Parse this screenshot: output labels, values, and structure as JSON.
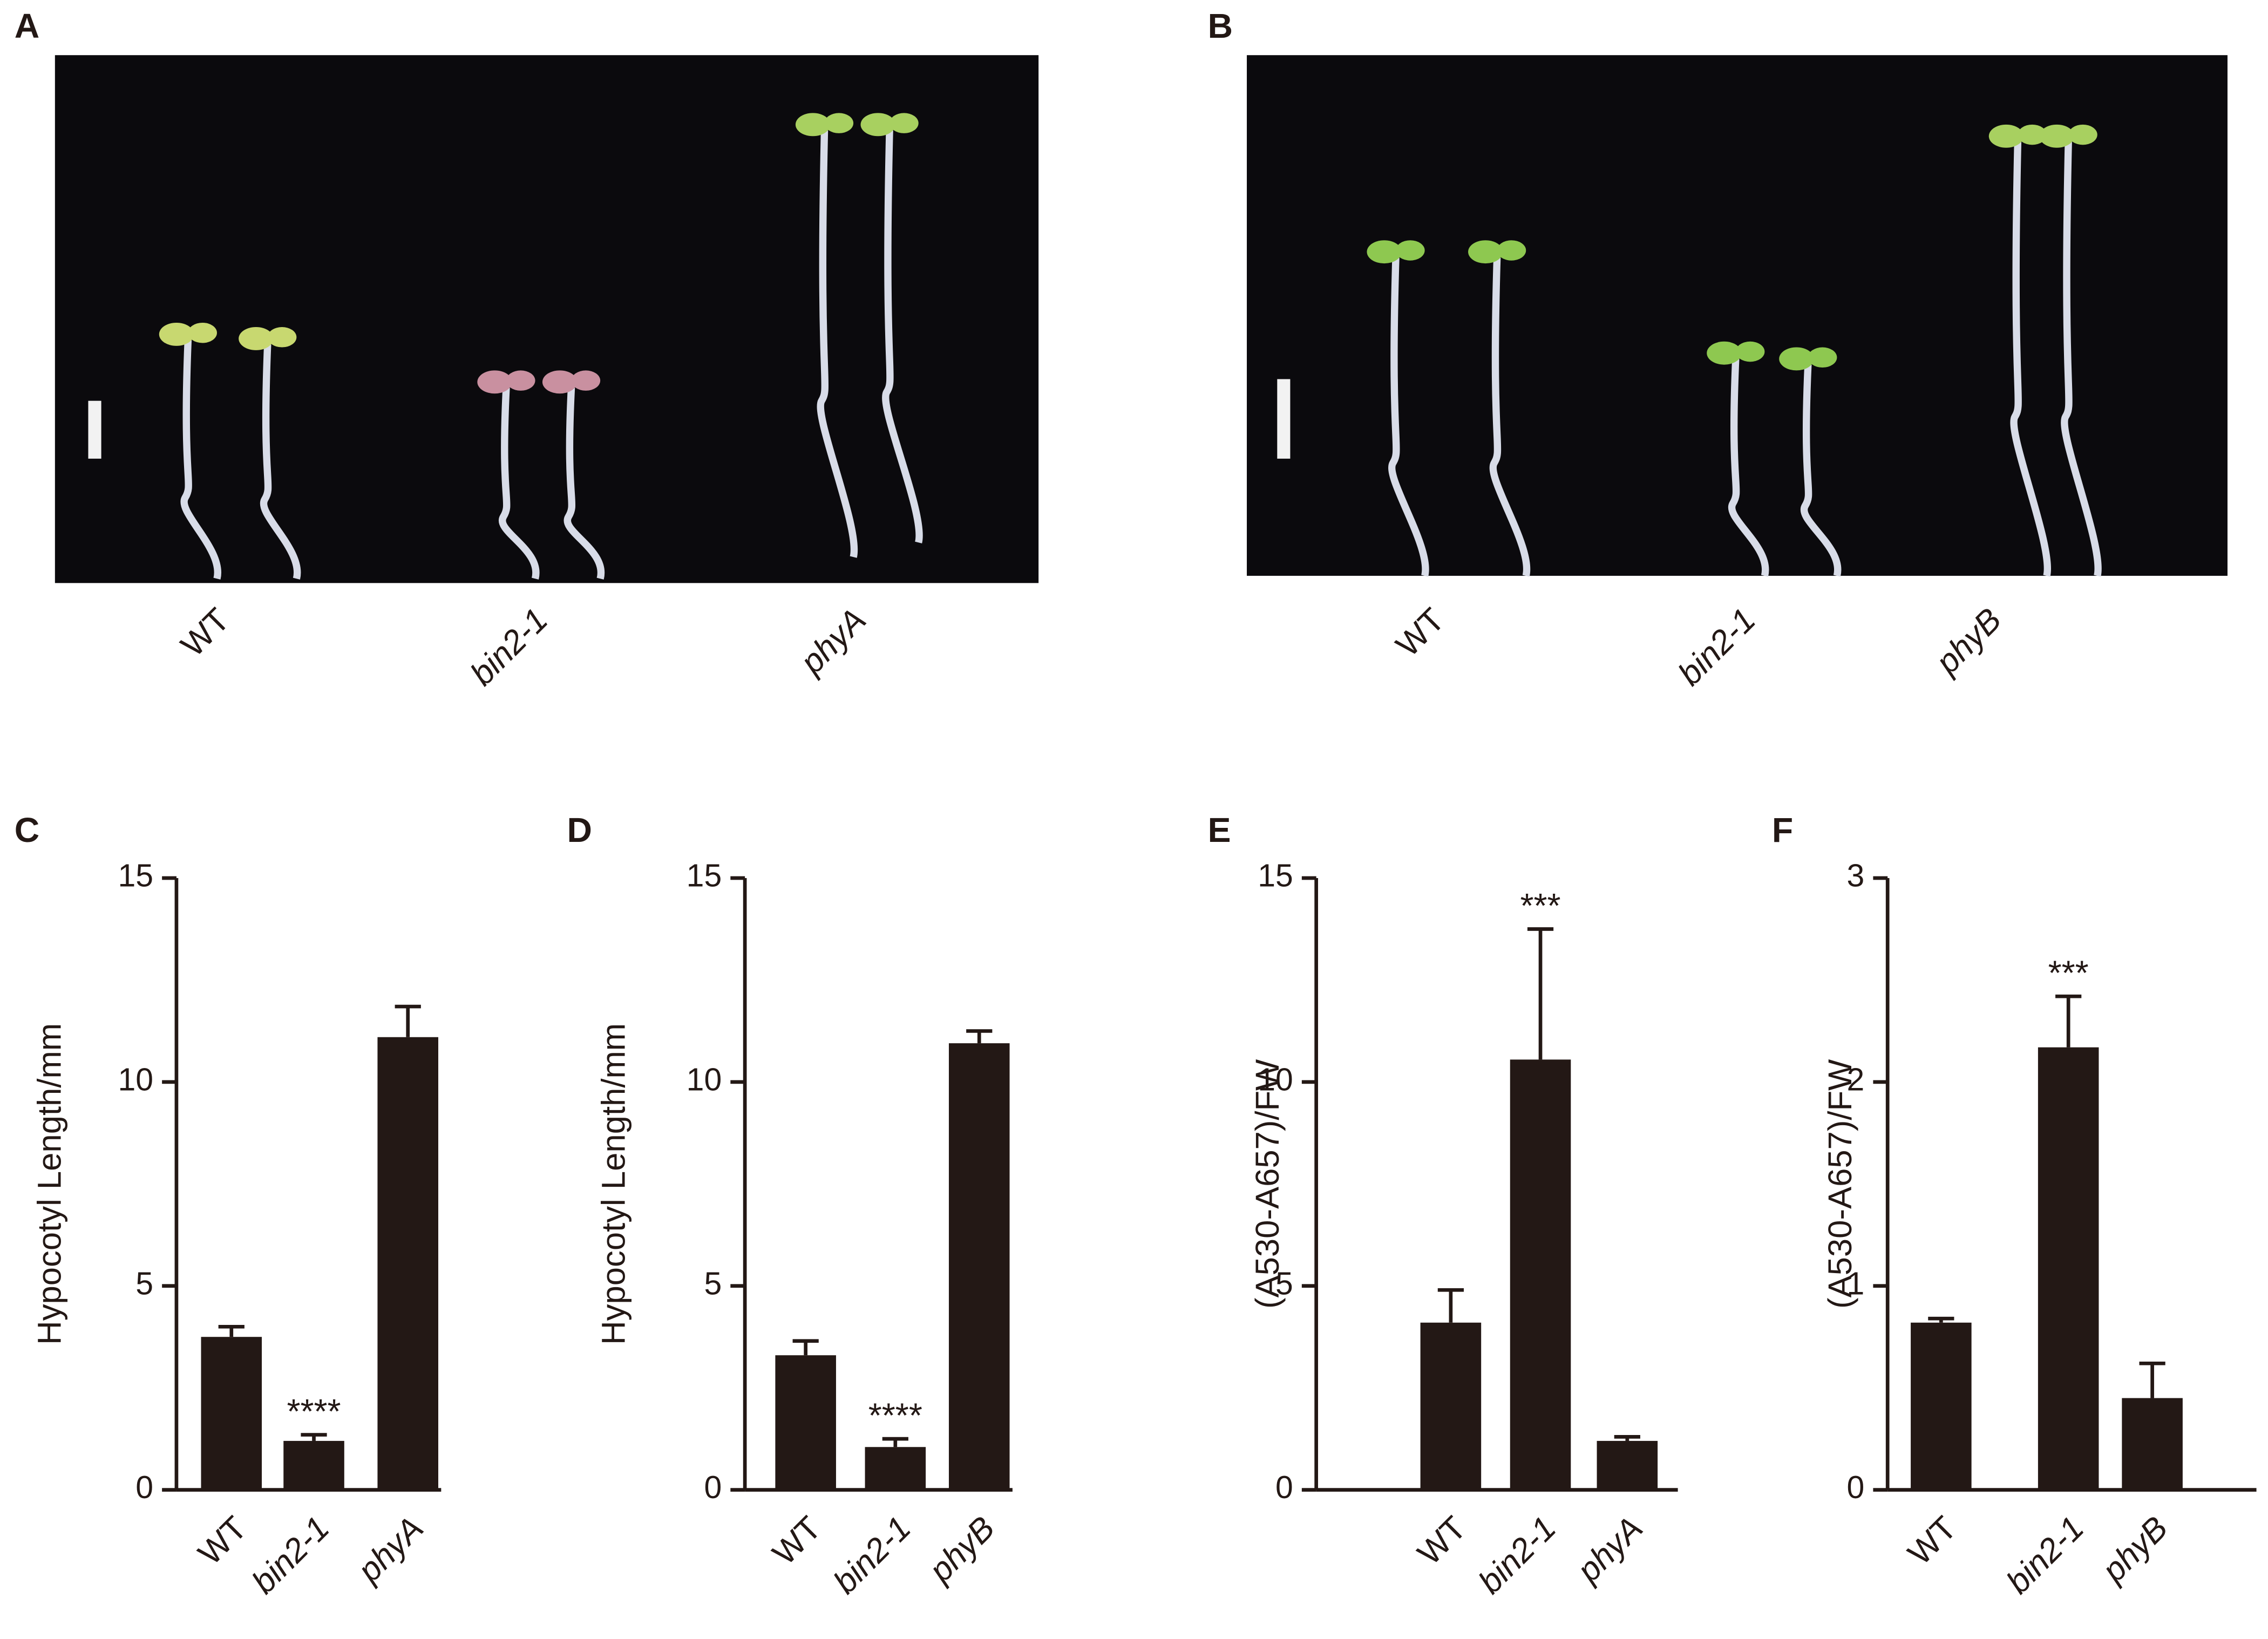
{
  "photo_panels": [
    {
      "panel": "A",
      "labels": [
        "WT",
        "bin2-1",
        "phyA"
      ]
    },
    {
      "panel": "B",
      "labels": [
        "WT",
        "bin2-1",
        "phyB"
      ]
    }
  ],
  "chart_data": [
    {
      "type": "bar",
      "panel": "C",
      "ylabel": "Hypocotyl Length/mm",
      "categories": [
        "WT",
        "bin2-1",
        "phyA"
      ],
      "values": [
        3.75,
        1.2,
        11.1
      ],
      "errors": [
        0.25,
        0.15,
        0.75
      ],
      "color": "#231815",
      "ylim": [
        0,
        15
      ],
      "yticks": [
        0,
        5,
        10,
        15
      ],
      "annotations": [
        {
          "text": "****",
          "category": "bin2-1"
        }
      ]
    },
    {
      "type": "bar",
      "panel": "D",
      "ylabel": "Hypocotyl Length/mm",
      "categories": [
        "WT",
        "bin2-1",
        "phyB"
      ],
      "values": [
        3.3,
        1.05,
        10.95
      ],
      "errors": [
        0.35,
        0.2,
        0.3
      ],
      "color": "#231815",
      "ylim": [
        0,
        15
      ],
      "yticks": [
        0,
        5,
        10,
        15
      ],
      "annotations": [
        {
          "text": "****",
          "category": "bin2-1"
        }
      ]
    },
    {
      "type": "bar",
      "panel": "E",
      "ylabel": "(A530-A657)/FW",
      "categories": [
        "WT",
        "bin2-1",
        "phyA"
      ],
      "values": [
        4.1,
        10.55,
        1.2
      ],
      "errors": [
        0.8,
        3.2,
        0.1
      ],
      "color": "#231815",
      "ylim": [
        0,
        15
      ],
      "yticks": [
        0,
        5,
        10,
        15
      ],
      "annotations": [
        {
          "text": "***",
          "category": "bin2-1"
        }
      ]
    },
    {
      "type": "bar",
      "panel": "F",
      "ylabel": "(A530-A657)/FW",
      "categories": [
        "WT",
        "bin2-1",
        "phyB"
      ],
      "values": [
        0.82,
        2.17,
        0.45
      ],
      "errors": [
        0.02,
        0.25,
        0.17
      ],
      "color": "#231815",
      "ylim": [
        0,
        3
      ],
      "yticks": [
        0,
        1,
        2,
        3
      ],
      "annotations": [
        {
          "text": "***",
          "category": "bin2-1"
        }
      ]
    }
  ]
}
